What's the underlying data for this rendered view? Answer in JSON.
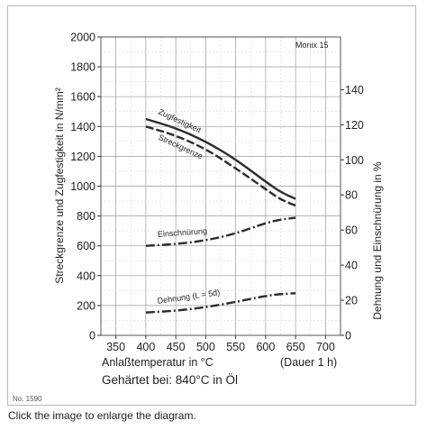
{
  "page": {
    "figure_number": "No. 1590",
    "caption": "Click the image to enlarge the diagram."
  },
  "chart_data": {
    "type": "line",
    "title": "Monix 15",
    "xlabel": "Anlaßtemperatur in °C",
    "xlabel_note": "(Dauer 1 h)",
    "subtitle": "Gehärtet bei: 840°C in Öl",
    "ylabel_left": "Streckgrenze und Zugfestigkeit in N/mm²",
    "ylabel_right": "Dehnung und Einschnürung in %",
    "xlim": [
      325,
      725
    ],
    "ylim_left": [
      0,
      2000
    ],
    "ylim_right": [
      0,
      170
    ],
    "x_ticks": [
      350,
      400,
      450,
      500,
      550,
      600,
      650,
      700
    ],
    "y_ticks_left": [
      0,
      200,
      400,
      600,
      800,
      1000,
      1200,
      1400,
      1600,
      1800,
      2000
    ],
    "y_ticks_right": [
      0,
      20,
      40,
      60,
      80,
      100,
      120,
      140
    ],
    "grid": true,
    "series": [
      {
        "name": "Zugfestigkeit",
        "axis": "left",
        "style": "solid",
        "x": [
          400,
          450,
          500,
          550,
          600,
          625,
          650
        ],
        "y": [
          1450,
          1390,
          1300,
          1180,
          1030,
          960,
          915
        ]
      },
      {
        "name": "Streckgrenze",
        "axis": "left",
        "style": "dashed",
        "x": [
          400,
          450,
          500,
          550,
          600,
          625,
          650
        ],
        "y": [
          1400,
          1340,
          1250,
          1120,
          980,
          910,
          870
        ]
      },
      {
        "name": "Einschnürung",
        "axis": "right",
        "style": "dashdot",
        "x": [
          400,
          450,
          500,
          550,
          600,
          625,
          650
        ],
        "y": [
          51,
          52,
          54,
          58,
          64,
          66,
          67
        ]
      },
      {
        "name": "Dehnung (L = 5d)",
        "axis": "right",
        "style": "dashdot",
        "x": [
          400,
          450,
          500,
          550,
          600,
          625,
          650
        ],
        "y": [
          13,
          14,
          16,
          19,
          22.5,
          23.5,
          24
        ]
      }
    ]
  }
}
